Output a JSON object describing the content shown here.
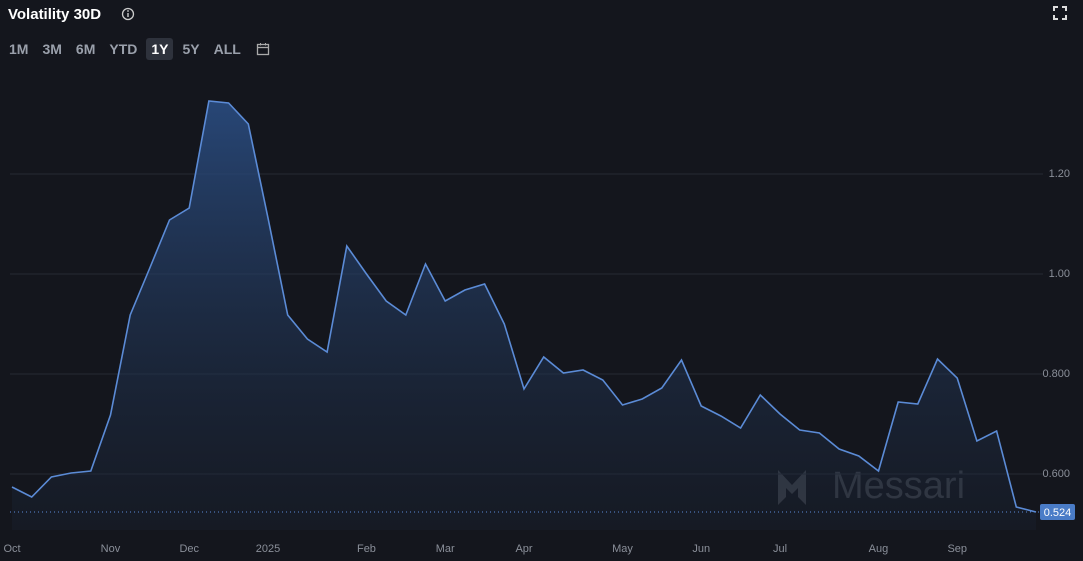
{
  "toolbar": {
    "ranges": [
      "1M",
      "3M",
      "6M",
      "YTD",
      "1Y",
      "5Y",
      "ALL"
    ],
    "selected": "1Y"
  },
  "chart_data": {
    "type": "area",
    "title": "Volatility 30D",
    "watermark": "Messari",
    "color": "#5b8bd6",
    "categories": [
      "Oct",
      null,
      null,
      null,
      null,
      "Nov",
      null,
      null,
      null,
      "Dec",
      null,
      null,
      null,
      "2025",
      null,
      null,
      null,
      null,
      "Feb",
      null,
      null,
      null,
      "Mar",
      null,
      null,
      null,
      "Apr",
      null,
      null,
      null,
      null,
      "May",
      null,
      null,
      null,
      "Jun",
      null,
      null,
      null,
      "Jul",
      null,
      null,
      null,
      null,
      "Aug",
      null,
      null,
      null,
      "Sep",
      null,
      null,
      null,
      null
    ],
    "values": [
      0.574,
      0.554,
      0.594,
      0.602,
      0.606,
      0.718,
      0.918,
      1.012,
      1.108,
      1.132,
      1.346,
      1.342,
      1.3,
      1.112,
      0.918,
      0.87,
      0.844,
      1.056,
      1.0,
      0.946,
      0.918,
      1.02,
      0.946,
      0.968,
      0.98,
      0.9,
      0.77,
      0.834,
      0.802,
      0.808,
      0.788,
      0.738,
      0.75,
      0.772,
      0.828,
      0.736,
      0.716,
      0.692,
      0.758,
      0.72,
      0.688,
      0.682,
      0.65,
      0.636,
      0.606,
      0.744,
      0.74,
      0.83,
      0.792,
      0.666,
      0.686,
      0.534,
      0.524
    ],
    "ylim": [
      0.488,
      1.408
    ],
    "yticks": [
      {
        "value": 0.6,
        "label": "0.600"
      },
      {
        "value": 0.8,
        "label": "0.800"
      },
      {
        "value": 1.0,
        "label": "1.00"
      },
      {
        "value": 1.2,
        "label": "1.20"
      }
    ],
    "grid": true
  }
}
